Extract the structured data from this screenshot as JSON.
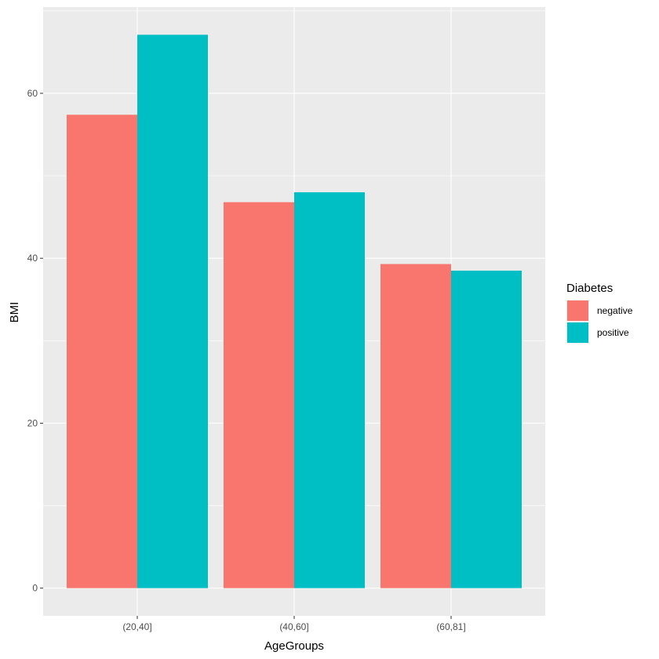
{
  "chart_data": {
    "type": "bar",
    "categories": [
      "(20,40]",
      "(40,60]",
      "(60,81]"
    ],
    "series": [
      {
        "name": "negative",
        "values": [
          57.4,
          46.8,
          39.3
        ],
        "color": "#F8766D"
      },
      {
        "name": "positive",
        "values": [
          67.1,
          48.0,
          38.5
        ],
        "color": "#00BFC4"
      }
    ],
    "xlabel": "AgeGroups",
    "ylabel": "BMI",
    "ylim": [
      -3.36,
      70.46
    ],
    "yticks": [
      0,
      20,
      40,
      60
    ],
    "ytick_labels": [
      "0",
      "20",
      "40",
      "60"
    ],
    "grid": true,
    "panel_background": "#EBEBEB",
    "legend": {
      "title": "Diabetes",
      "position": "right"
    }
  }
}
